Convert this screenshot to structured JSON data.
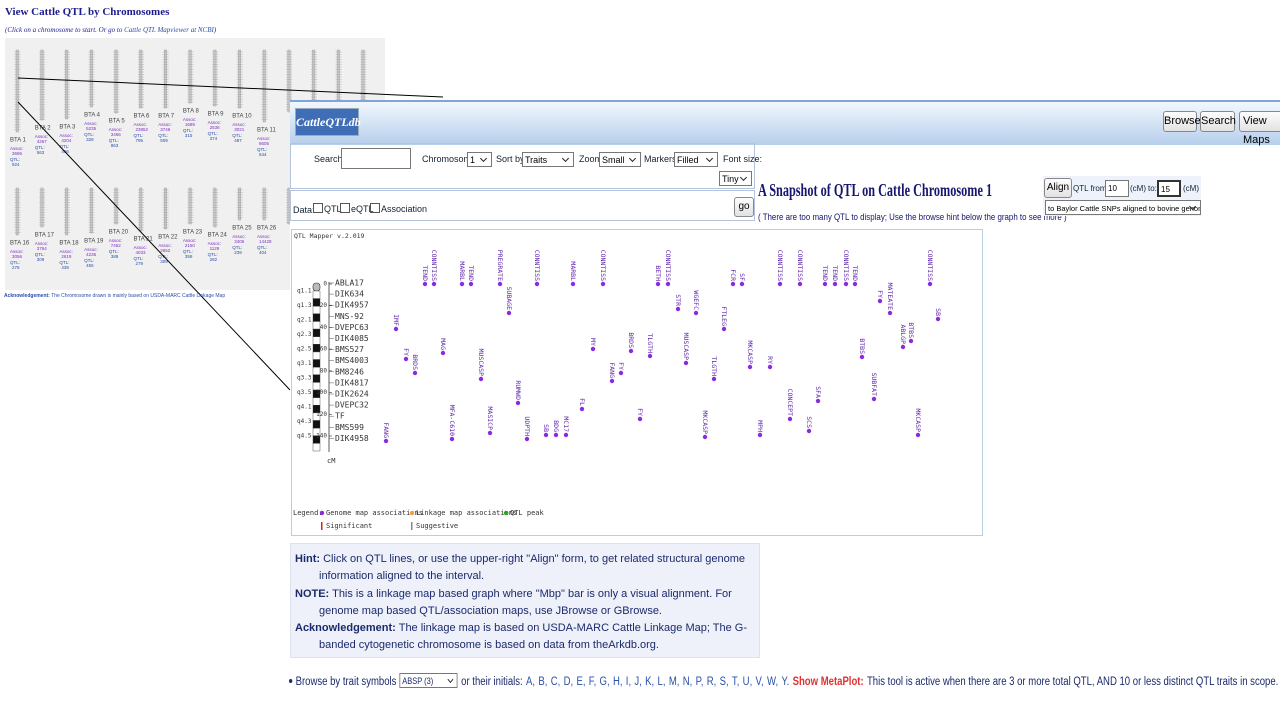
{
  "header": {
    "title": "View Cattle QTL by Chromosomes",
    "subtitle_prefix": "(Click on a chromosome to start. Or go to",
    "subtitle_link": "Cattle QTL Mapviewer at NCBI",
    "subtitle_suffix": ")"
  },
  "thumbnails": {
    "assoc_label": "Assoc:",
    "qtl_label": "QTL:",
    "top": [
      {
        "label": "BTA 1",
        "assoc": 3696,
        "qtl": 924
      },
      {
        "label": "BTA 2",
        "assoc": 4267,
        "qtl": 563
      },
      {
        "label": "BTA 3",
        "assoc": 4204,
        "qtl": 496
      },
      {
        "label": "BTA 4",
        "assoc": 5235,
        "qtl": 328
      },
      {
        "label": "BTA 5",
        "assoc": 3466,
        "qtl": 863
      },
      {
        "label": "BTA 6",
        "assoc": 23852,
        "qtl": 795
      },
      {
        "label": "BTA 7",
        "assoc": 3746,
        "qtl": 509
      },
      {
        "label": "BTA 8",
        "assoc": 1689,
        "qtl": 315
      },
      {
        "label": "BTA 9",
        "assoc": 2536,
        "qtl": 374
      },
      {
        "label": "BTA 10",
        "assoc": 3021,
        "qtl": 487
      },
      {
        "label": "BTA 11",
        "assoc": 8605,
        "qtl": 544
      }
    ],
    "bottom": [
      {
        "label": "BTA 16",
        "assoc": 3056,
        "qtl": 276
      },
      {
        "label": "BTA 17",
        "assoc": 3764,
        "qtl": 309
      },
      {
        "label": "BTA 18",
        "assoc": 2619,
        "qtl": 439
      },
      {
        "label": "BTA 19",
        "assoc": 4236,
        "qtl": 455
      },
      {
        "label": "BTA 20",
        "assoc": 7462,
        "qtl": 389
      },
      {
        "label": "BTA 21",
        "assoc": 4033,
        "qtl": 279
      },
      {
        "label": "BTA 22",
        "assoc": 2652,
        "qtl": 309
      },
      {
        "label": "BTA 23",
        "assoc": 2150,
        "qtl": 359
      },
      {
        "label": "BTA 24",
        "assoc": 1129,
        "qtl": 282
      },
      {
        "label": "BTA 25",
        "assoc": 3406,
        "qtl": 239
      },
      {
        "label": "BTA 26",
        "assoc": 14428,
        "qtl": 404
      }
    ],
    "ack_label": "Acknowledgement:",
    "ack_text": "The Chromosome drawn is mainly based on USDA-MARC Cattle Linkage Map"
  },
  "toolbar": {
    "logo": "CattleQTLdb",
    "buttons": [
      "Browse",
      "Search",
      "View Maps"
    ]
  },
  "form": {
    "search_label": "Search:",
    "chromosome_label": "Chromosome:",
    "chromosome_value": "1",
    "sortby_label": "Sort by:",
    "sortby_value": "Traits",
    "zoom_label": "Zoom:",
    "zoom_value": "Small",
    "markers_label": "Markers:",
    "markers_value": "Filled",
    "fontsize_label": "Font size:",
    "fontsize_value": "Tiny",
    "data_label": "Data:",
    "data_options": [
      "QTL",
      "eQTL",
      "Association"
    ],
    "go": "go"
  },
  "snapshot": {
    "title": "A Snapshot of QTL on Cattle Chromosome 1",
    "note": "( There are too many QTL to display; Use the browse hint below the graph to see more )"
  },
  "align": {
    "button": "Align",
    "from_label": "QTL from:",
    "from_value": "10",
    "unit": "(cM)",
    "to_label": "to:",
    "to_value": "15",
    "target": "to Baylor Cattle SNPs aligned to bovine genome"
  },
  "map": {
    "version": "QTL Mapper v.2.019",
    "unit": "cM",
    "ticks": [
      "0",
      "20",
      "40",
      "60",
      "80",
      "100",
      "120",
      "140"
    ],
    "bands": [
      "q1.1",
      "q1.3",
      "q2.1",
      "q2.3",
      "q2.5",
      "q3.1",
      "q3.3",
      "q3.5",
      "q4.1",
      "q4.3",
      "q4.5"
    ],
    "markers": [
      "ABLA17",
      "DIK634",
      "DIK4957",
      "MNS-92",
      "DVEPC63",
      "DIK4085",
      "BMS527",
      "BMS4003",
      "BM8246",
      "DIK4817",
      "DIK2624",
      "DVEPC32",
      "TF",
      "BMS599",
      "DIK4958"
    ],
    "qtl": [
      "TEND",
      "CONNTISS",
      "MARBL",
      "TEND",
      "PREGRATE",
      "SUBAGE",
      "CONNTISS",
      "MARBL",
      "CONNTISS",
      "BETH",
      "CONNTISS",
      "STR",
      "WGEFC",
      "FCR",
      "SF",
      "CONNTISS",
      "CONNTISS",
      "TEND",
      "TEND",
      "CONNTISS",
      "TEND",
      "FY",
      "MATEATE",
      "CONNTISS",
      "SB",
      "IMF",
      "FY",
      "BRDS",
      "MAG",
      "MUSCASP",
      "MY",
      "BRDS",
      "FANG",
      "FY",
      "TLGTH",
      "MUSCASP",
      "FTLEG",
      "TLGTH",
      "MKCASP",
      "RY",
      "BTBS",
      "ABLGP",
      "BTBS",
      "SUBFAT",
      "FANG",
      "MFA-C610",
      "MASICP",
      "RUMWD",
      "UDPTH",
      "SB",
      "BDG",
      "MC17",
      "FL",
      "FY",
      "MKCASP",
      "MPH",
      "CONCEPT",
      "SCS",
      "SFA",
      "MKCASP"
    ],
    "legend": {
      "label": "Legend:",
      "items": [
        "Genome map associations",
        "Linkage map associations",
        "QTL peak",
        "Significant",
        "Suggestive"
      ]
    }
  },
  "hint": [
    {
      "label": "Hint:",
      "text": "Click on QTL lines, or use the upper-right \"Align\" form, to get related structural genome information aligned to the interval."
    },
    {
      "label": "NOTE:",
      "text": "This is a linkage map based graph where \"Mbp\" bar is only a visual alignment. For genome map based QTL/association maps, use JBrowse or GBrowse."
    },
    {
      "label": "Acknowledgement:",
      "text": "The linkage map is based on USDA-MARC Cattle Linkage Map; The G-banded cytogenetic chromosome is based on data from theArkdb.org."
    }
  ],
  "browse": {
    "label": "Browse by trait symbols",
    "select": "ABSP (3)",
    "initials_label": "or their initials:",
    "letters": [
      "A,",
      "B,",
      "C,",
      "D,",
      "E,",
      "F,",
      "G,",
      "H,",
      "I,",
      "J,",
      "K,",
      "L,",
      "M,",
      "N,",
      "P,",
      "R,",
      "S,",
      "T,",
      "U,",
      "V,",
      "W,",
      "Y."
    ],
    "metaplot": "Show MetaPlot:",
    "description": "This tool is active when there are 3 or more total QTL, AND 10 or less distinct QTL traits in scope."
  }
}
